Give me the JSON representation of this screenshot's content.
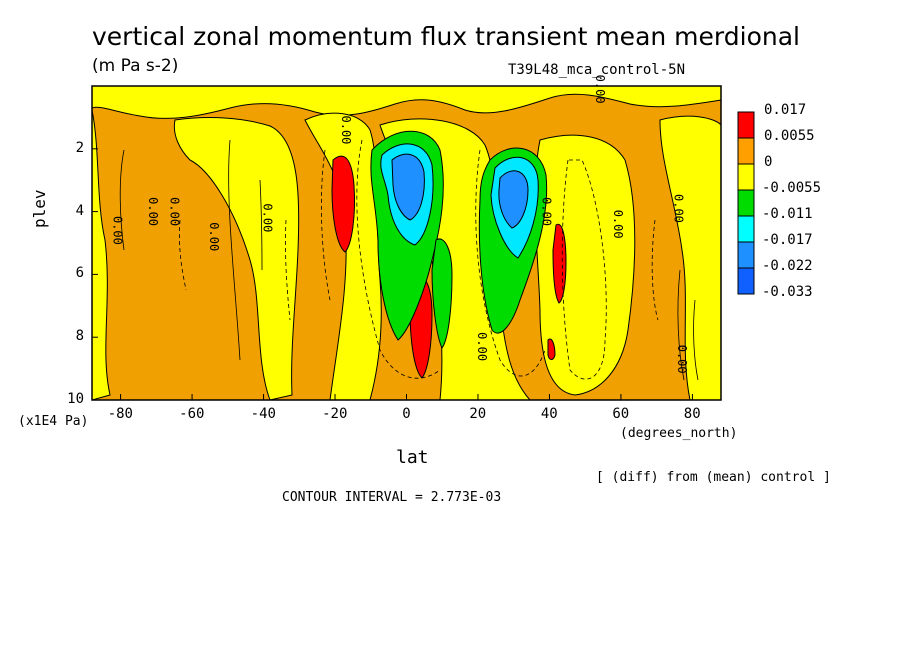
{
  "title": "vertical zonal momentum flux transient mean merdional",
  "units": "(m Pa s-2)",
  "run_label": "T39L48_mca_control-5N",
  "y_axis_label": "plev",
  "y_unit_label": "(x1E4 Pa)",
  "x_axis_label": "lat",
  "x_unit_label": "(degrees_north)",
  "diff_note": "[ (diff) from (mean) control ]",
  "contour_interval_text": "CONTOUR INTERVAL = 2.773E-03",
  "chart_data": {
    "type": "heatmap",
    "x_ticks": [
      "-80",
      "-60",
      "-40",
      "-20",
      "0",
      "20",
      "40",
      "60",
      "80"
    ],
    "y_ticks": [
      "2",
      "4",
      "6",
      "8",
      "10"
    ],
    "xlim": [
      -88,
      88
    ],
    "ylim": [
      0,
      10
    ],
    "contour_labels": [
      {
        "text": "0.00",
        "x": -82,
        "y": 4.6
      },
      {
        "text": "0.00",
        "x": -72,
        "y": 4.0
      },
      {
        "text": "0.00",
        "x": -66,
        "y": 4.0
      },
      {
        "text": "0.00",
        "x": -55,
        "y": 4.8
      },
      {
        "text": "0.00",
        "x": -40,
        "y": 4.2
      },
      {
        "text": "0.00",
        "x": -18,
        "y": 1.4
      },
      {
        "text": "0.00",
        "x": 20,
        "y": 8.3
      },
      {
        "text": "0.00",
        "x": 38,
        "y": 4.0
      },
      {
        "text": "0.00",
        "x": 58,
        "y": 4.4
      },
      {
        "text": "0.00",
        "x": 75,
        "y": 3.9
      },
      {
        "text": "0.00",
        "x": 76,
        "y": 8.7
      },
      {
        "text": "0.00",
        "x": 53,
        "y": 0.1
      }
    ],
    "colorbar": {
      "labels": [
        "0.017",
        "0.0055",
        "0",
        "-0.0055",
        "-0.011",
        "-0.017",
        "-0.022",
        "-0.033"
      ],
      "colors": [
        "#ff0000",
        "#ffa000",
        "#ffff00",
        "#00dc00",
        "#00ffff",
        "#1e90ff",
        "#1060ff"
      ]
    },
    "field_colors": {
      "orange": "#f0a000",
      "yellow": "#ffff00",
      "red": "#ff0000",
      "green": "#00dc00",
      "cyan": "#00e8ff",
      "blue": "#1e90ff",
      "deep_blue": "#1060ff"
    }
  }
}
